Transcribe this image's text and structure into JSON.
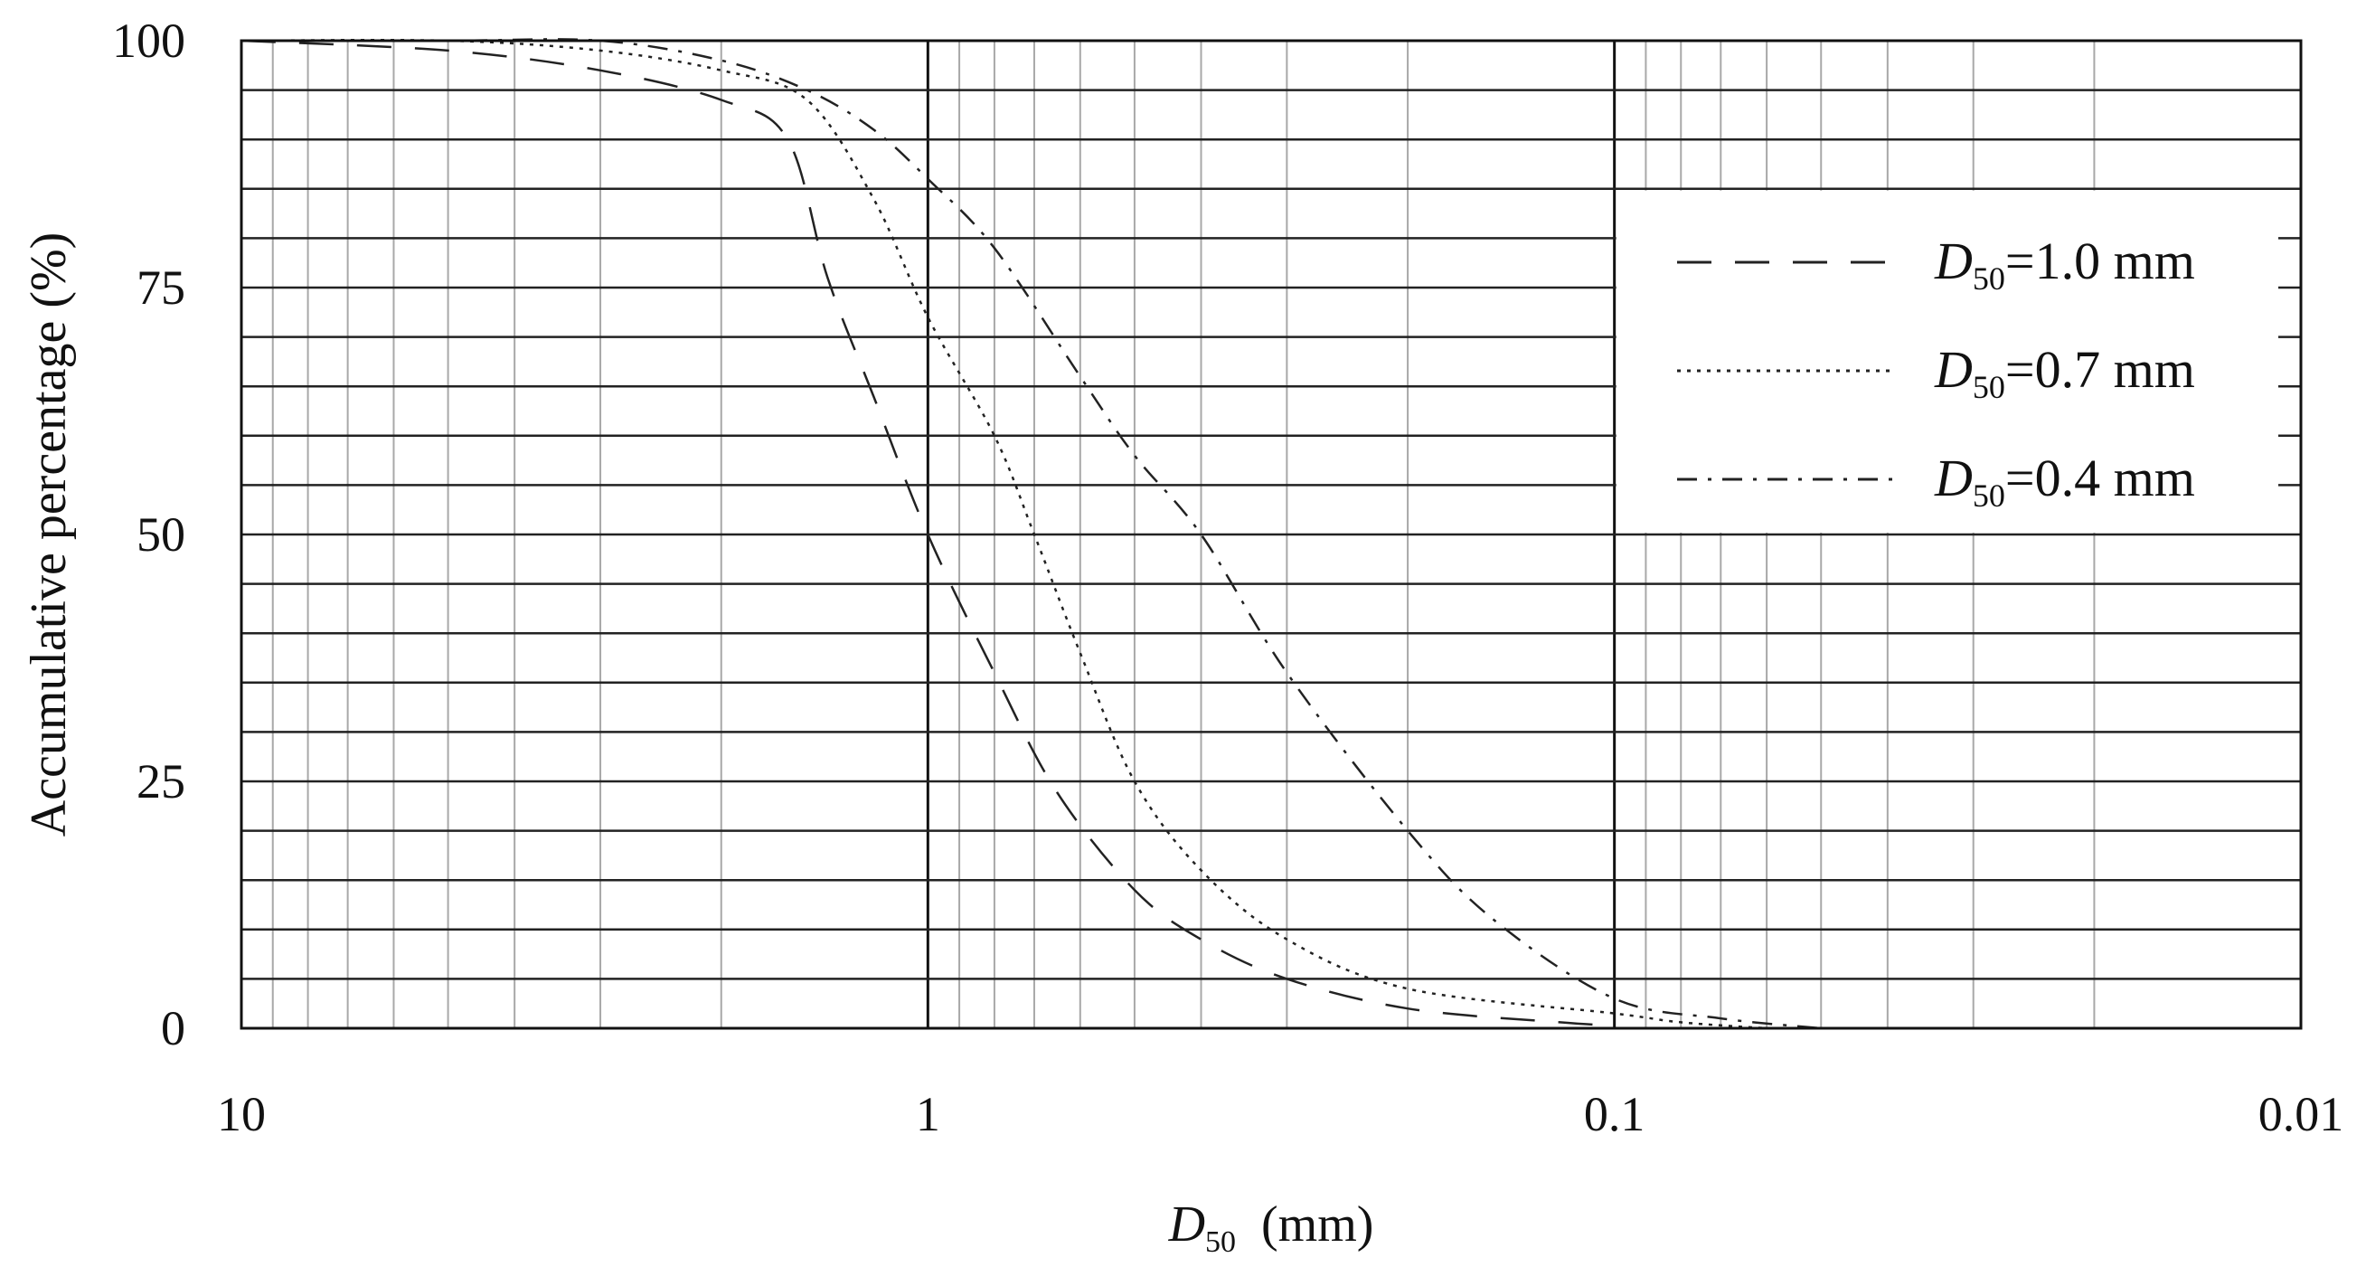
{
  "chart_data": {
    "type": "line",
    "title": "",
    "xlabel": {
      "symbol": "D",
      "subscript": "50",
      "unit": "(mm)"
    },
    "ylabel": "Accumulative percentage (%)",
    "x_scale": "log",
    "x_reversed": true,
    "xlim": [
      10,
      0.01
    ],
    "ylim": [
      0,
      100
    ],
    "x_ticks": [
      {
        "value": 10,
        "label": "10"
      },
      {
        "value": 1,
        "label": "1"
      },
      {
        "value": 0.1,
        "label": "0.1"
      },
      {
        "value": 0.01,
        "label": "0.01"
      }
    ],
    "y_ticks": [
      {
        "value": 0,
        "label": "0"
      },
      {
        "value": 25,
        "label": "25"
      },
      {
        "value": 50,
        "label": "50"
      },
      {
        "value": 75,
        "label": "75"
      },
      {
        "value": 100,
        "label": "100"
      }
    ],
    "grid": true,
    "legend_position": "right",
    "series": [
      {
        "name": "D50=1.0 mm",
        "legend": {
          "symbol": "D",
          "subscript": "50",
          "text": "=1.0 mm"
        },
        "dash": "dashed",
        "color": "#222222",
        "x": [
          10,
          5,
          3,
          2,
          1.6,
          1.4,
          1.2,
          1.0,
          0.8,
          0.65,
          0.5,
          0.4,
          0.3,
          0.2,
          0.12,
          0.1
        ],
        "y": [
          100,
          99,
          97,
          94,
          90,
          76,
          64,
          50,
          36,
          24,
          14,
          9,
          5,
          2,
          0.6,
          0.3
        ]
      },
      {
        "name": "D50=0.7 mm",
        "legend": {
          "symbol": "D",
          "subscript": "50",
          "text": "=0.7 mm"
        },
        "dash": "dotted",
        "color": "#222222",
        "x": [
          10,
          5,
          3,
          2,
          1.5,
          1.2,
          1.0,
          0.8,
          0.7,
          0.6,
          0.5,
          0.4,
          0.3,
          0.2,
          0.1,
          0.08,
          0.06
        ],
        "y": [
          100,
          100,
          99,
          97,
          94,
          84,
          72,
          60,
          50,
          38,
          25,
          16,
          9,
          4,
          1.5,
          0.6,
          0
        ]
      },
      {
        "name": "D50=0.4 mm",
        "legend": {
          "symbol": "D",
          "subscript": "50",
          "text": "=0.4 mm"
        },
        "dash": "dashdot",
        "color": "#222222",
        "x": [
          10,
          5,
          3,
          2,
          1.5,
          1.2,
          1.0,
          0.8,
          0.6,
          0.5,
          0.4,
          0.3,
          0.2,
          0.15,
          0.1,
          0.07,
          0.05
        ],
        "y": [
          100,
          100,
          100,
          98,
          95,
          91,
          86,
          79,
          66,
          58,
          50,
          36,
          20,
          11,
          3,
          1,
          0
        ]
      }
    ]
  }
}
